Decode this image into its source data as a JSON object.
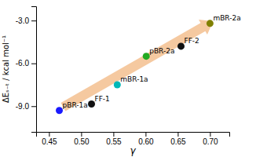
{
  "chart_data": {
    "type": "scatter",
    "x": [
      0.466,
      0.516,
      0.556,
      0.601,
      0.655,
      0.7
    ],
    "values": [
      -9.3,
      -8.85,
      -7.5,
      -5.5,
      -4.8,
      -3.2
    ],
    "colors": [
      "#1a1aff",
      "#111111",
      "#00b8b8",
      "#22aa22",
      "#111111",
      "#808000"
    ],
    "labels": [
      "pBR-1a",
      "FF-1",
      "mBR-1a",
      "pBR-2a",
      "FF-2",
      "mBR-2a"
    ],
    "arrow": {
      "x": [
        0.472,
        0.705
      ],
      "y": [
        -9.05,
        -3.05
      ],
      "color": "#f5c9a0"
    },
    "xlabel": "γ",
    "ylabel": "ΔEₛ₋ₜ / kcal mol⁻¹",
    "xlim": [
      0.43,
      0.73
    ],
    "ylim": [
      -10.8,
      -2.0
    ],
    "xticks": [
      0.45,
      {
        "value": 0.5,
        "label": "0.50"
      },
      0.55,
      {
        "value": 0.6,
        "label": "0.60"
      },
      0.65,
      {
        "value": 0.7,
        "label": "0.70"
      }
    ],
    "yticks": [
      {
        "value": -9.0,
        "label": "-9.0"
      },
      {
        "value": -6.0,
        "label": "-6.0"
      },
      {
        "value": -3.0,
        "label": "-3.0"
      }
    ],
    "grid": false
  }
}
